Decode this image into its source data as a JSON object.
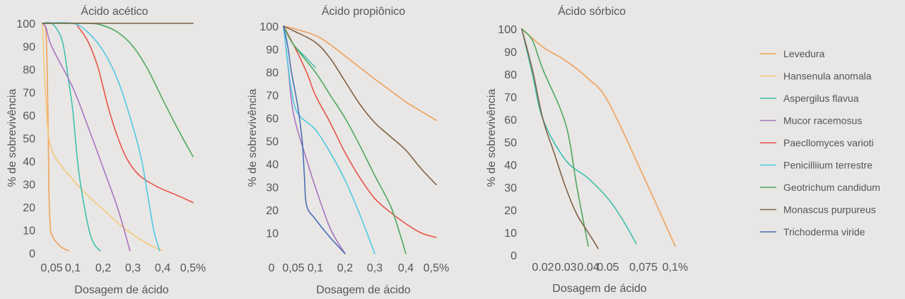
{
  "chart_data": [
    {
      "type": "line",
      "title": "Ácido acético",
      "xlabel": "Dosagem de ácido",
      "ylabel": "% de sobrevivência",
      "xticks": [
        "0,05",
        "0,1",
        "0,2",
        "0,3",
        "0,4",
        "0,5%"
      ],
      "yticks": [
        "0",
        "10",
        "20",
        "30",
        "40",
        "50",
        "60",
        "70",
        "80",
        "90",
        "100"
      ],
      "ylim": [
        0,
        100
      ],
      "series": [
        {
          "name": "Levedura",
          "color": "#f0a05a",
          "x": [
            0,
            0.02,
            0.03,
            0.035,
            0.04,
            0.05,
            0.07,
            0.09
          ],
          "y": [
            100,
            95,
            60,
            30,
            15,
            8,
            3,
            1
          ]
        },
        {
          "name": "Hansenula anomala",
          "color": "#f5c878",
          "x": [
            0,
            0.02,
            0.05,
            0.1,
            0.15,
            0.2,
            0.25,
            0.3,
            0.35,
            0.4
          ],
          "y": [
            100,
            65,
            45,
            32,
            25,
            19,
            13,
            8,
            4,
            1
          ]
        },
        {
          "name": "Aspergilus flavua",
          "color": "#3fbfae",
          "x": [
            0,
            0.05,
            0.07,
            0.08,
            0.09,
            0.1,
            0.12,
            0.15,
            0.17,
            0.19
          ],
          "y": [
            100,
            100,
            95,
            88,
            75,
            62,
            35,
            12,
            4,
            1
          ]
        },
        {
          "name": "Mucor racemosus",
          "color": "#a874c0",
          "x": [
            0,
            0.02,
            0.05,
            0.1,
            0.15,
            0.2,
            0.25,
            0.29
          ],
          "y": [
            100,
            98,
            90,
            72,
            55,
            37,
            19,
            1
          ]
        },
        {
          "name": "Paecllomyces varioti",
          "color": "#e8544a",
          "x": [
            0,
            0.1,
            0.12,
            0.15,
            0.18,
            0.2,
            0.22,
            0.25,
            0.28,
            0.32,
            0.38,
            0.45,
            0.5
          ],
          "y": [
            100,
            100,
            98,
            92,
            82,
            72,
            62,
            50,
            41,
            34,
            29,
            25,
            22
          ]
        },
        {
          "name": "Penicilliium terrestre",
          "color": "#4ec8e2",
          "x": [
            0,
            0.1,
            0.15,
            0.2,
            0.25,
            0.3,
            0.33,
            0.35,
            0.37,
            0.39
          ],
          "y": [
            100,
            100,
            96,
            88,
            75,
            55,
            40,
            25,
            10,
            1
          ]
        },
        {
          "name": "Geotrichum candidum",
          "color": "#4ea860",
          "x": [
            0,
            0.15,
            0.2,
            0.25,
            0.3,
            0.35,
            0.4,
            0.45,
            0.5
          ],
          "y": [
            100,
            100,
            99,
            96,
            90,
            80,
            67,
            54,
            42
          ]
        },
        {
          "name": "Monascus purpureus",
          "color": "#7f6046",
          "x": [
            0,
            0.1,
            0.2,
            0.3,
            0.4,
            0.5
          ],
          "y": [
            100,
            100,
            100,
            100,
            100,
            100
          ]
        }
      ]
    },
    {
      "type": "line",
      "title": "Ácido propiônico",
      "xlabel": "Dosagem de ácido",
      "ylabel": "% de sobrevivência",
      "xticks": [
        "0",
        "0,05",
        "0,1",
        "0,2",
        "0,3",
        "0,4",
        "0,5%"
      ],
      "yticks": [
        "10",
        "20",
        "30",
        "40",
        "50",
        "60",
        "70",
        "80",
        "90",
        "100"
      ],
      "ylim": [
        0,
        100
      ],
      "series": [
        {
          "name": "Levedura",
          "color": "#f0a05a",
          "x": [
            0,
            0.05,
            0.1,
            0.15,
            0.2,
            0.25,
            0.3,
            0.35,
            0.4,
            0.45,
            0.5
          ],
          "y": [
            100,
            99,
            96,
            92,
            87,
            82,
            77,
            72,
            67,
            63,
            59
          ]
        },
        {
          "name": "Aspergilus flavua",
          "color": "#3fbfae",
          "x": [
            0,
            0.02,
            0.05,
            0.08,
            0.1
          ],
          "y": [
            100,
            97,
            92,
            86,
            82
          ]
        },
        {
          "name": "Mucor racemosus",
          "color": "#a874c0",
          "x": [
            0,
            0.02,
            0.05,
            0.08,
            0.1,
            0.15,
            0.2
          ],
          "y": [
            100,
            85,
            62,
            42,
            30,
            12,
            1
          ]
        },
        {
          "name": "Paecllomyces varioti",
          "color": "#e8544a",
          "x": [
            0,
            0.05,
            0.08,
            0.1,
            0.15,
            0.2,
            0.25,
            0.3,
            0.35,
            0.4,
            0.45,
            0.5
          ],
          "y": [
            100,
            92,
            80,
            70,
            58,
            45,
            34,
            25,
            19,
            14,
            10,
            8
          ]
        },
        {
          "name": "Penicilliium terrestre",
          "color": "#4ec8e2",
          "x": [
            0,
            0.02,
            0.04,
            0.06,
            0.1,
            0.15,
            0.2,
            0.25,
            0.3
          ],
          "y": [
            100,
            85,
            72,
            62,
            55,
            45,
            33,
            18,
            1
          ]
        },
        {
          "name": "Geotrichum candidum",
          "color": "#4ea860",
          "x": [
            0,
            0.05,
            0.1,
            0.15,
            0.2,
            0.25,
            0.3,
            0.35,
            0.38,
            0.4
          ],
          "y": [
            100,
            92,
            80,
            70,
            60,
            48,
            35,
            22,
            10,
            1
          ]
        },
        {
          "name": "Monascus purpureus",
          "color": "#7f6046",
          "x": [
            0,
            0.05,
            0.1,
            0.15,
            0.2,
            0.25,
            0.3,
            0.35,
            0.4,
            0.45,
            0.5
          ],
          "y": [
            100,
            98,
            93,
            86,
            76,
            66,
            58,
            52,
            46,
            38,
            31
          ]
        },
        {
          "name": "Trichoderma viride",
          "color": "#4a6fb5",
          "x": [
            0,
            0.02,
            0.04,
            0.06,
            0.07,
            0.075,
            0.08,
            0.1,
            0.15,
            0.2
          ],
          "y": [
            100,
            92,
            80,
            65,
            50,
            35,
            22,
            16,
            8,
            1
          ]
        }
      ]
    },
    {
      "type": "line",
      "title": "Ácido sórbico",
      "xlabel": "Dosagem de ácido",
      "ylabel": "% de sobrevivência",
      "xticks": [
        "0.02",
        "0.03",
        "0.04",
        "0.05",
        "0,075",
        "0,1%"
      ],
      "yticks": [
        "0",
        "10",
        "20",
        "30",
        "40",
        "50",
        "60",
        "70",
        "80",
        "90",
        "100"
      ],
      "ylim": [
        0,
        100
      ],
      "series": [
        {
          "name": "Levedura",
          "color": "#f0a05a",
          "x": [
            0,
            0.02,
            0.03,
            0.04,
            0.05,
            0.075,
            0.1
          ],
          "y": [
            100,
            92,
            86,
            78,
            68,
            35,
            4
          ]
        },
        {
          "name": "Aspergilus flavua",
          "color": "#3fbfae",
          "x": [
            0,
            0.01,
            0.02,
            0.03,
            0.04,
            0.05,
            0.06,
            0.07
          ],
          "y": [
            100,
            80,
            60,
            42,
            34,
            25,
            16,
            5
          ]
        },
        {
          "name": "Geotrichum candidum",
          "color": "#4ea860",
          "x": [
            0,
            0.01,
            0.02,
            0.03,
            0.035,
            0.04
          ],
          "y": [
            100,
            95,
            82,
            58,
            30,
            4
          ]
        },
        {
          "name": "Monascus purpureus",
          "color": "#7f6046",
          "x": [
            0,
            0.01,
            0.02,
            0.025,
            0.03,
            0.035,
            0.04,
            0.045
          ],
          "y": [
            100,
            82,
            60,
            45,
            30,
            18,
            10,
            3
          ]
        }
      ]
    }
  ],
  "legend": {
    "placement": "right",
    "items": [
      {
        "label": "Levedura",
        "color": "#f0a05a"
      },
      {
        "label": "Hansenula anomala",
        "color": "#f5c878"
      },
      {
        "label": "Aspergilus flavua",
        "color": "#3fbfae"
      },
      {
        "label": "Mucor racemosus",
        "color": "#a874c0"
      },
      {
        "label": "Paecllomyces varioti",
        "color": "#e8544a"
      },
      {
        "label": "Penicilliium terrestre",
        "color": "#4ec8e2"
      },
      {
        "label": "Geotrichum candidum",
        "color": "#4ea860"
      },
      {
        "label": "Monascus purpureus",
        "color": "#7f6046"
      },
      {
        "label": "Trichoderma viride",
        "color": "#4a6fb5"
      }
    ]
  }
}
